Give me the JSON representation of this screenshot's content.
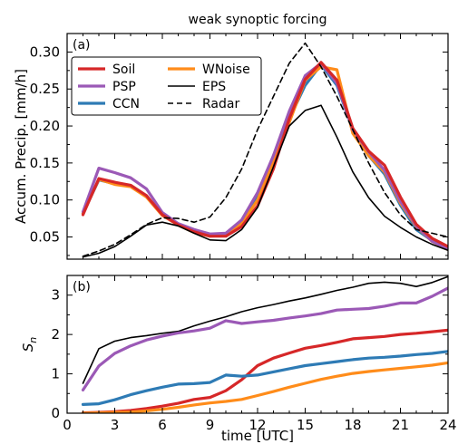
{
  "title": "weak synoptic forcing",
  "colors": {
    "Soil": "#d62728",
    "PSP": "#9b59b6",
    "CCN": "#2e7bb5",
    "WNoise": "#ff8c1a",
    "EPS": "#000000",
    "Radar": "#000000"
  },
  "chart_data": [
    {
      "type": "line",
      "panel_label": "(a)",
      "ylabel": "Accum. Precip. [mm/h]",
      "xlabel": "",
      "xlim": [
        0,
        24
      ],
      "ylim": [
        0.02,
        0.325
      ],
      "xticks": [
        0,
        3,
        6,
        9,
        12,
        15,
        18,
        21,
        24
      ],
      "yticks": [
        0.05,
        0.1,
        0.15,
        0.2,
        0.25,
        0.3
      ],
      "ytick_labels": [
        "0.05",
        "0.10",
        "0.15",
        "0.20",
        "0.25",
        "0.30"
      ],
      "legend": {
        "placement": "top-left",
        "entries": [
          "Soil",
          "PSP",
          "CCN",
          "WNoise",
          "EPS",
          "Radar"
        ]
      },
      "x": [
        1,
        2,
        3,
        4,
        5,
        6,
        7,
        8,
        9,
        10,
        11,
        12,
        13,
        14,
        15,
        16,
        17,
        18,
        19,
        20,
        21,
        22,
        23,
        24
      ],
      "series": [
        {
          "name": "CCN",
          "values": [
            0.082,
            0.127,
            0.122,
            0.119,
            0.105,
            0.08,
            0.067,
            0.057,
            0.052,
            0.053,
            0.07,
            0.105,
            0.16,
            0.21,
            0.255,
            0.283,
            0.255,
            0.195,
            0.16,
            0.135,
            0.093,
            0.06,
            0.045,
            0.036
          ]
        },
        {
          "name": "WNoise",
          "values": [
            0.082,
            0.128,
            0.121,
            0.118,
            0.104,
            0.079,
            0.066,
            0.056,
            0.051,
            0.052,
            0.068,
            0.1,
            0.152,
            0.205,
            0.262,
            0.28,
            0.276,
            0.19,
            0.16,
            0.138,
            0.096,
            0.064,
            0.044,
            0.033
          ]
        },
        {
          "name": "PSP",
          "values": [
            0.084,
            0.143,
            0.137,
            0.13,
            0.115,
            0.083,
            0.068,
            0.06,
            0.054,
            0.055,
            0.073,
            0.11,
            0.16,
            0.22,
            0.268,
            0.285,
            0.258,
            0.195,
            0.165,
            0.14,
            0.098,
            0.065,
            0.044,
            0.034
          ]
        },
        {
          "name": "Soil",
          "values": [
            0.08,
            0.129,
            0.124,
            0.12,
            0.106,
            0.08,
            0.066,
            0.057,
            0.051,
            0.051,
            0.064,
            0.092,
            0.142,
            0.21,
            0.263,
            0.286,
            0.262,
            0.197,
            0.166,
            0.147,
            0.104,
            0.067,
            0.048,
            0.037
          ]
        },
        {
          "name": "EPS",
          "values": [
            0.023,
            0.028,
            0.037,
            0.051,
            0.066,
            0.07,
            0.065,
            0.055,
            0.046,
            0.045,
            0.06,
            0.09,
            0.145,
            0.2,
            0.221,
            0.228,
            0.185,
            0.138,
            0.103,
            0.078,
            0.063,
            0.05,
            0.04,
            0.032
          ]
        },
        {
          "name": "Radar",
          "values": [
            0.024,
            0.031,
            0.04,
            0.053,
            0.067,
            0.076,
            0.075,
            0.07,
            0.077,
            0.103,
            0.142,
            0.195,
            0.24,
            0.285,
            0.312,
            0.28,
            0.24,
            0.195,
            0.15,
            0.11,
            0.08,
            0.06,
            0.055,
            0.05
          ]
        }
      ]
    },
    {
      "type": "line",
      "panel_label": "(b)",
      "ylabel": "Sn",
      "xlabel": "time [UTC]",
      "xlim": [
        0,
        24
      ],
      "ylim": [
        0,
        3.5
      ],
      "xticks": [
        0,
        3,
        6,
        9,
        12,
        15,
        18,
        21,
        24
      ],
      "xtick_labels": [
        "0",
        "3",
        "6",
        "9",
        "12",
        "15",
        "18",
        "21",
        "24"
      ],
      "yticks": [
        0,
        1,
        2,
        3
      ],
      "ytick_labels": [
        "0",
        "1",
        "2",
        "3"
      ],
      "x": [
        1,
        2,
        3,
        4,
        5,
        6,
        7,
        8,
        9,
        10,
        11,
        12,
        13,
        14,
        15,
        16,
        17,
        18,
        19,
        20,
        21,
        22,
        23,
        24
      ],
      "series": [
        {
          "name": "EPS",
          "values": [
            0.76,
            1.64,
            1.83,
            1.92,
            1.97,
            2.03,
            2.08,
            2.22,
            2.34,
            2.45,
            2.58,
            2.68,
            2.76,
            2.85,
            2.93,
            3.02,
            3.12,
            3.2,
            3.3,
            3.33,
            3.3,
            3.22,
            3.32,
            3.47
          ]
        },
        {
          "name": "PSP",
          "values": [
            0.59,
            1.2,
            1.52,
            1.71,
            1.86,
            1.96,
            2.04,
            2.09,
            2.16,
            2.35,
            2.28,
            2.32,
            2.36,
            2.42,
            2.47,
            2.53,
            2.62,
            2.64,
            2.66,
            2.72,
            2.8,
            2.8,
            2.97,
            3.18
          ]
        },
        {
          "name": "Soil",
          "values": [
            0.01,
            0.02,
            0.04,
            0.07,
            0.12,
            0.18,
            0.25,
            0.35,
            0.4,
            0.57,
            0.85,
            1.21,
            1.4,
            1.53,
            1.65,
            1.72,
            1.8,
            1.89,
            1.92,
            1.95,
            2.0,
            2.03,
            2.07,
            2.11
          ]
        },
        {
          "name": "CCN",
          "values": [
            0.22,
            0.24,
            0.34,
            0.47,
            0.57,
            0.66,
            0.74,
            0.75,
            0.78,
            0.97,
            0.94,
            0.97,
            1.05,
            1.13,
            1.21,
            1.26,
            1.31,
            1.36,
            1.4,
            1.42,
            1.45,
            1.49,
            1.52,
            1.57
          ]
        },
        {
          "name": "WNoise",
          "values": [
            0.0,
            0.01,
            0.02,
            0.03,
            0.06,
            0.1,
            0.15,
            0.21,
            0.26,
            0.3,
            0.35,
            0.45,
            0.55,
            0.66,
            0.76,
            0.86,
            0.94,
            1.01,
            1.06,
            1.1,
            1.14,
            1.18,
            1.22,
            1.28
          ]
        }
      ]
    }
  ]
}
